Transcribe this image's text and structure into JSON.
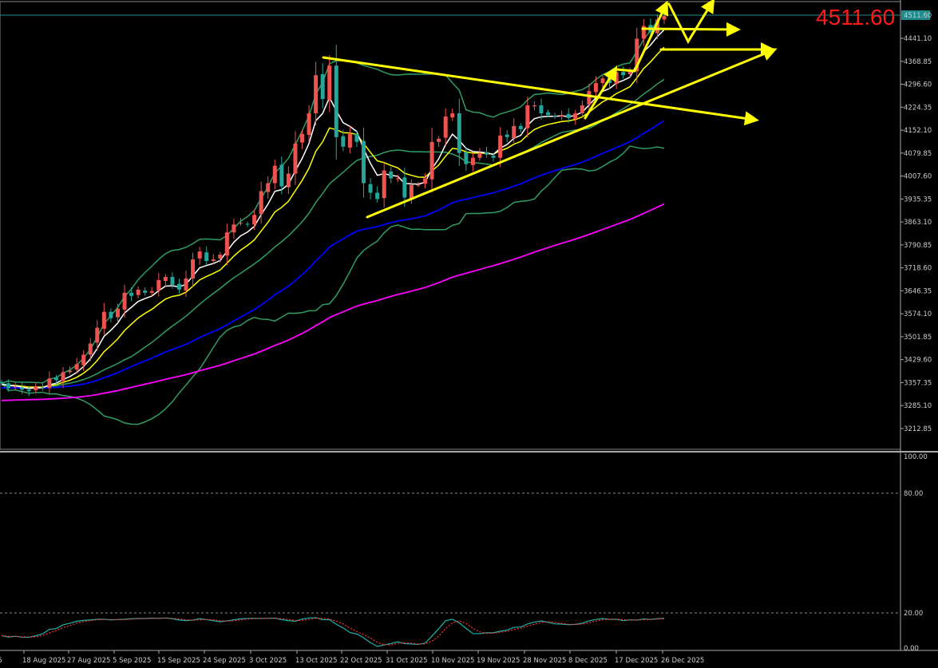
{
  "chart_data": {
    "type": "candlestick",
    "current_price": "4511.60",
    "colors": {
      "up": "#ef5350",
      "down": "#26a69a",
      "ma_fast": "#ffffff",
      "ma_mid": "#ffff00",
      "ma_slow": "#0000ff",
      "ma_long": "#ff00ff",
      "bands": "#2e9e62",
      "stoch_k": "#20b2aa",
      "stoch_d": "#ff3030",
      "price_line": "#1e8c8c",
      "annotation": "#ffff00"
    },
    "price_ticks": [
      "4511.60",
      "4441.10",
      "4368.85",
      "4296.60",
      "4224.35",
      "4152.10",
      "4079.85",
      "4007.60",
      "3935.35",
      "3863.10",
      "3790.85",
      "3718.60",
      "3646.35",
      "3574.10",
      "3501.85",
      "3429.60",
      "3357.35",
      "3285.10",
      "3212.85"
    ],
    "date_ticks": [
      "25",
      "18 Aug 2025",
      "27 Aug 2025",
      "5 Sep 2025",
      "15 Sep 2025",
      "24 Sep 2025",
      "3 Oct 2025",
      "13 Oct 2025",
      "22 Oct 2025",
      "31 Oct 2025",
      "10 Nov 2025",
      "19 Nov 2025",
      "28 Nov 2025",
      "8 Dec 2025",
      "17 Dec 2025",
      "26 Dec 2025"
    ],
    "stoch_ticks": [
      "100.00",
      "80.00",
      "20.00",
      "0.00"
    ],
    "closes": [
      3355,
      3340,
      3345,
      3335,
      3330,
      3345,
      3340,
      3370,
      3365,
      3390,
      3395,
      3415,
      3445,
      3480,
      3530,
      3580,
      3560,
      3590,
      3640,
      3630,
      3650,
      3640,
      3645,
      3680,
      3690,
      3665,
      3650,
      3685,
      3745,
      3770,
      3740,
      3745,
      3760,
      3830,
      3855,
      3860,
      3855,
      3885,
      3960,
      3985,
      4040,
      3975,
      4015,
      4110,
      4140,
      4205,
      4325,
      4250,
      4355,
      4130,
      4100,
      4140,
      4115,
      3985,
      3955,
      3935,
      4025,
      4000,
      4000,
      3940,
      3980,
      3980,
      4000,
      4115,
      4125,
      4195,
      4205,
      4080,
      4045,
      4065,
      4080,
      4075,
      4065,
      4135,
      4130,
      4165,
      4155,
      4230,
      4230,
      4205,
      4200,
      4195,
      4200,
      4190,
      4205,
      4230,
      4275,
      4300,
      4315,
      4300,
      4335,
      4325,
      4340,
      4440,
      4480,
      4460,
      4500,
      4511.6
    ]
  }
}
